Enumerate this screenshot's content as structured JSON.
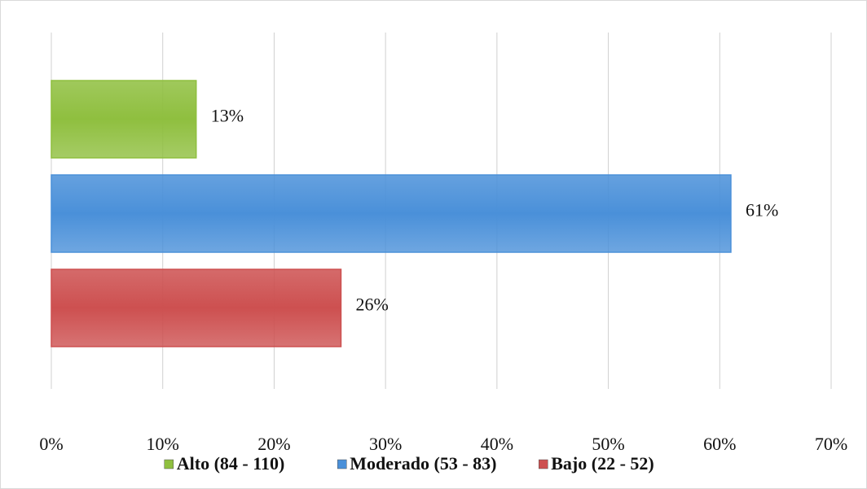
{
  "chart_data": {
    "type": "bar",
    "orientation": "horizontal",
    "categories": [
      null
    ],
    "series": [
      {
        "name": "Alto (84 - 110)",
        "color": "#8fbf3f",
        "values": [
          13
        ],
        "value_labels": [
          "13%"
        ]
      },
      {
        "name": "Moderado (53 - 83)",
        "color": "#4a90d9",
        "values": [
          61
        ],
        "value_labels": [
          "61%"
        ]
      },
      {
        "name": "Bajo (22 - 52)",
        "color": "#cd5050",
        "values": [
          26
        ],
        "value_labels": [
          "26%"
        ]
      }
    ],
    "xlim": [
      0,
      70
    ],
    "xticks": [
      {
        "value": 0,
        "label": "0%"
      },
      {
        "value": 10,
        "label": "10%"
      },
      {
        "value": 20,
        "label": "20%"
      },
      {
        "value": 30,
        "label": "30%"
      },
      {
        "value": 40,
        "label": "40%"
      },
      {
        "value": 50,
        "label": "50%"
      },
      {
        "value": 60,
        "label": "60%"
      },
      {
        "value": 70,
        "label": "70%"
      }
    ],
    "grid": true,
    "legend": "bottom"
  }
}
